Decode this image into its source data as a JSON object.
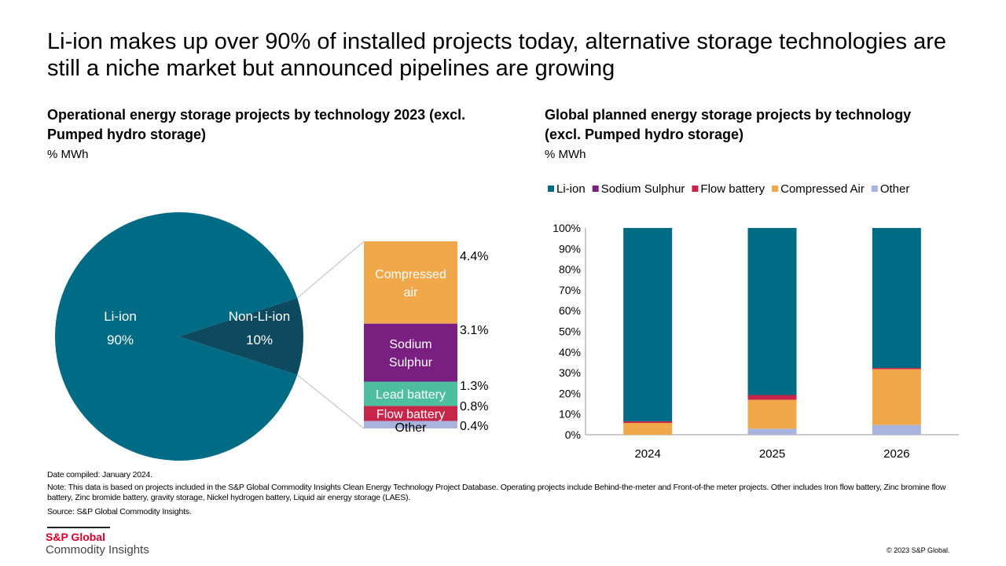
{
  "title": "Li-ion makes up over 90% of installed projects today, alternative storage technologies are still a niche market but announced pipelines are growing",
  "chart_data": [
    {
      "type": "pie",
      "title": "Operational energy storage projects by technology 2023 (excl. Pumped hydro storage)",
      "unit": "% MWh",
      "slices": [
        {
          "name": "Li-ion",
          "label": "90%",
          "value": 90,
          "color": "#006b85"
        },
        {
          "name": "Non-Li-ion",
          "label": "10%",
          "value": 10,
          "color": "#0d4a5f"
        }
      ],
      "breakdown": [
        {
          "name": "Compressed air",
          "label_lines": [
            "Compressed",
            "air"
          ],
          "value": 4.4,
          "value_label": "4.4%",
          "color": "#f0a84a",
          "text_color": "#ffffff"
        },
        {
          "name": "Sodium Sulphur",
          "label_lines": [
            "Sodium",
            "Sulphur"
          ],
          "value": 3.1,
          "value_label": "3.1%",
          "color": "#7a1f82",
          "text_color": "#ffffff"
        },
        {
          "name": "Lead battery",
          "label_lines": [
            "Lead battery"
          ],
          "value": 1.3,
          "value_label": "1.3%",
          "color": "#4dbf9f",
          "text_color": "#ffffff"
        },
        {
          "name": "Flow battery",
          "label_lines": [
            "Flow battery"
          ],
          "value": 0.8,
          "value_label": "0.8%",
          "color": "#c8254a",
          "text_color": "#ffffff"
        },
        {
          "name": "Other",
          "label_lines": [
            "Other"
          ],
          "value": 0.4,
          "value_label": "0.4%",
          "color": "#a9b4de",
          "text_color": "#000000"
        }
      ]
    },
    {
      "type": "bar",
      "stacked": true,
      "title": "Global planned energy storage projects by technology (excl. Pumped hydro storage)",
      "unit": "% MWh",
      "categories": [
        "2024",
        "2025",
        "2026"
      ],
      "ylim": [
        0,
        100
      ],
      "yticks": [
        "0%",
        "10%",
        "20%",
        "30%",
        "40%",
        "50%",
        "60%",
        "70%",
        "80%",
        "90%",
        "100%"
      ],
      "legend_position": "top",
      "grid": false,
      "series": [
        {
          "name": "Other",
          "color": "#a9b4de",
          "values": [
            0,
            2.9,
            4.7
          ]
        },
        {
          "name": "Compressed Air",
          "color": "#f0a84a",
          "values": [
            5.7,
            14,
            27
          ]
        },
        {
          "name": "Flow battery",
          "color": "#c8254a",
          "values": [
            0.8,
            2.3,
            0.6
          ]
        },
        {
          "name": "Sodium Sulphur",
          "color": "#7a1f82",
          "values": [
            0,
            0,
            0
          ]
        },
        {
          "name": "Li-ion",
          "color": "#006b85",
          "values": [
            93.5,
            80.8,
            67.7
          ]
        }
      ],
      "legend_order": [
        "Li-ion",
        "Sodium Sulphur",
        "Flow battery",
        "Compressed Air",
        "Other"
      ]
    }
  ],
  "notes": {
    "date": "Date compiled: January 2024.",
    "note": "Note: This data is based on projects included in the S&P Global Commodity Insights Clean Energy Technology Project Database. Operating projects include Behind-the-meter and Front-of-the meter projects. Other includes Iron flow battery, Zinc bromine flow battery, Zinc bromide battery, gravity  storage, Nickel hydrogen battery, Liquid air energy storage (LAES).",
    "source": "Source: S&P Global Commodity Insights."
  },
  "logo": {
    "line1": "S&P Global",
    "line2": "Commodity Insights",
    "color": "#d6002a"
  },
  "copyright": "© 2023  S&P Global."
}
